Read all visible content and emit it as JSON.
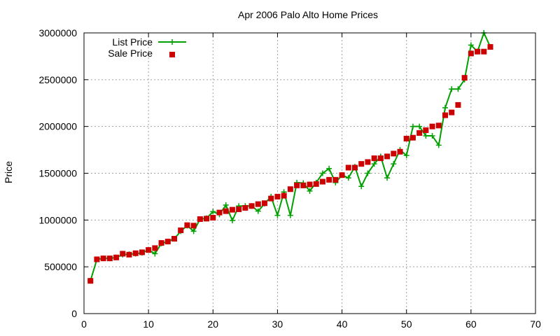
{
  "chart_data": {
    "type": "line",
    "title": "Apr 2006 Palo Alto Home Prices",
    "xlabel": "",
    "ylabel": "Price",
    "xlim": [
      0,
      70
    ],
    "ylim": [
      0,
      3000000
    ],
    "x_ticks": [
      "0",
      "10",
      "20",
      "30",
      "40",
      "50",
      "60",
      "70"
    ],
    "y_ticks": [
      "0",
      "500000",
      "1000000",
      "1500000",
      "2000000",
      "2500000",
      "3000000"
    ],
    "grid": true,
    "legend_position": "top-left",
    "series": [
      {
        "name": "List Price",
        "style": "line-plus",
        "color": "#00a000",
        "points": [
          [
            1,
            350000
          ],
          [
            2,
            580000
          ],
          [
            3,
            590000
          ],
          [
            4,
            590000
          ],
          [
            5,
            600000
          ],
          [
            6,
            630000
          ],
          [
            7,
            635000
          ],
          [
            8,
            640000
          ],
          [
            9,
            650000
          ],
          [
            10,
            680000
          ],
          [
            11,
            640000
          ],
          [
            12,
            750000
          ],
          [
            13,
            770000
          ],
          [
            14,
            800000
          ],
          [
            15,
            880000
          ],
          [
            16,
            940000
          ],
          [
            17,
            880000
          ],
          [
            18,
            1010000
          ],
          [
            19,
            1020000
          ],
          [
            20,
            1090000
          ],
          [
            21,
            1060000
          ],
          [
            22,
            1160000
          ],
          [
            23,
            995000
          ],
          [
            24,
            1150000
          ],
          [
            25,
            1150000
          ],
          [
            26,
            1150000
          ],
          [
            27,
            1095000
          ],
          [
            28,
            1175000
          ],
          [
            29,
            1250000
          ],
          [
            30,
            1050000
          ],
          [
            31,
            1300000
          ],
          [
            32,
            1050000
          ],
          [
            33,
            1400000
          ],
          [
            34,
            1395000
          ],
          [
            35,
            1310000
          ],
          [
            36,
            1400000
          ],
          [
            37,
            1500000
          ],
          [
            38,
            1550000
          ],
          [
            39,
            1400000
          ],
          [
            40,
            1480000
          ],
          [
            41,
            1450000
          ],
          [
            42,
            1570000
          ],
          [
            43,
            1360000
          ],
          [
            44,
            1500000
          ],
          [
            45,
            1600000
          ],
          [
            46,
            1680000
          ],
          [
            47,
            1450000
          ],
          [
            48,
            1600000
          ],
          [
            49,
            1750000
          ],
          [
            50,
            1690000
          ],
          [
            51,
            2000000
          ],
          [
            52,
            2000000
          ],
          [
            53,
            1900000
          ],
          [
            54,
            1900000
          ],
          [
            55,
            1800000
          ],
          [
            56,
            2200000
          ],
          [
            57,
            2400000
          ],
          [
            58,
            2400000
          ],
          [
            59,
            2500000
          ],
          [
            60,
            2870000
          ],
          [
            61,
            2800000
          ],
          [
            62,
            3000000
          ],
          [
            63,
            2850000
          ]
        ]
      },
      {
        "name": "Sale Price",
        "style": "square",
        "color": "#cc0000",
        "points": [
          [
            1,
            350000
          ],
          [
            2,
            580000
          ],
          [
            3,
            590000
          ],
          [
            4,
            590000
          ],
          [
            5,
            600000
          ],
          [
            6,
            640000
          ],
          [
            7,
            630000
          ],
          [
            8,
            645000
          ],
          [
            9,
            655000
          ],
          [
            10,
            680000
          ],
          [
            11,
            700000
          ],
          [
            12,
            755000
          ],
          [
            13,
            770000
          ],
          [
            14,
            800000
          ],
          [
            15,
            890000
          ],
          [
            16,
            945000
          ],
          [
            17,
            940000
          ],
          [
            18,
            1010000
          ],
          [
            19,
            1015000
          ],
          [
            20,
            1025000
          ],
          [
            21,
            1080000
          ],
          [
            22,
            1095000
          ],
          [
            23,
            1110000
          ],
          [
            24,
            1115000
          ],
          [
            25,
            1130000
          ],
          [
            26,
            1150000
          ],
          [
            27,
            1170000
          ],
          [
            28,
            1180000
          ],
          [
            29,
            1230000
          ],
          [
            30,
            1250000
          ],
          [
            31,
            1260000
          ],
          [
            32,
            1330000
          ],
          [
            33,
            1370000
          ],
          [
            34,
            1370000
          ],
          [
            35,
            1380000
          ],
          [
            36,
            1385000
          ],
          [
            37,
            1410000
          ],
          [
            38,
            1430000
          ],
          [
            39,
            1430000
          ],
          [
            40,
            1480000
          ],
          [
            41,
            1560000
          ],
          [
            42,
            1560000
          ],
          [
            43,
            1600000
          ],
          [
            44,
            1620000
          ],
          [
            45,
            1660000
          ],
          [
            46,
            1660000
          ],
          [
            47,
            1680000
          ],
          [
            48,
            1710000
          ],
          [
            49,
            1730000
          ],
          [
            50,
            1870000
          ],
          [
            51,
            1880000
          ],
          [
            52,
            1930000
          ],
          [
            53,
            1960000
          ],
          [
            54,
            2000000
          ],
          [
            55,
            2010000
          ],
          [
            56,
            2120000
          ],
          [
            57,
            2150000
          ],
          [
            58,
            2230000
          ],
          [
            59,
            2520000
          ],
          [
            60,
            2780000
          ],
          [
            61,
            2800000
          ],
          [
            62,
            2800000
          ],
          [
            63,
            2850000
          ]
        ]
      }
    ]
  }
}
